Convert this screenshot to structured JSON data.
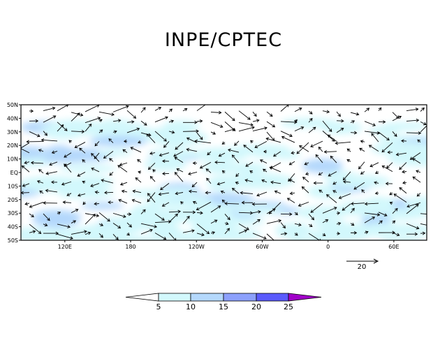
{
  "title": "INPE/CPTEC",
  "chart_data": {
    "type": "map-vector-field",
    "title": "INPE/CPTEC",
    "lon_range": [
      80,
      450
    ],
    "lat_range": [
      -50,
      50
    ],
    "lat_ticks": [
      "50N",
      "40N",
      "30N",
      "20N",
      "10N",
      "EQ",
      "10S",
      "20S",
      "30S",
      "40S",
      "50S"
    ],
    "lat_values": [
      50,
      40,
      30,
      20,
      10,
      0,
      -10,
      -20,
      -30,
      -40,
      -50
    ],
    "lon_ticks": [
      "120E",
      "180",
      "120W",
      "60W",
      "0",
      "60E"
    ],
    "lon_values": [
      120,
      180,
      240,
      300,
      360,
      420
    ],
    "reference_vector": {
      "label": "20",
      "value": 20
    },
    "colorbar": {
      "levels": [
        "5",
        "10",
        "15",
        "20",
        "25"
      ],
      "colors": [
        "#ffffff",
        "#d2f8fc",
        "#b4d8fc",
        "#8ca0fc",
        "#5a5afc",
        "#a000c8"
      ]
    }
  }
}
